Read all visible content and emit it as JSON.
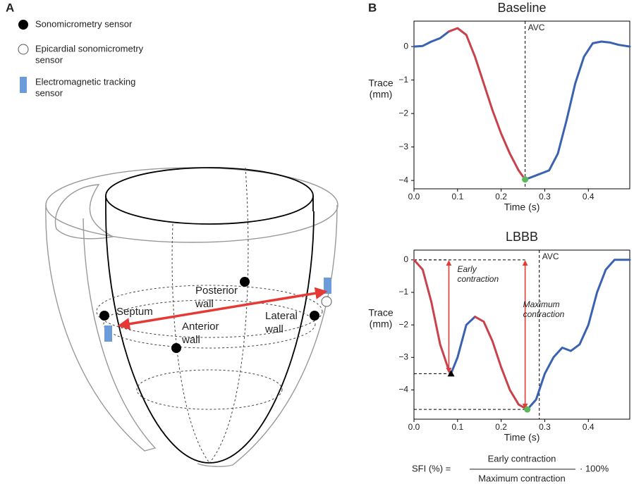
{
  "panel_labels": [
    "A",
    "B"
  ],
  "legend": [
    {
      "lines": [
        "Sonomicrometry sensor"
      ]
    },
    {
      "lines": [
        "Epicardial sonomicrometry",
        "sensor"
      ]
    },
    {
      "lines": [
        "Electromagnetic tracking",
        "sensor"
      ]
    }
  ],
  "diagram_labels": [
    {
      "lines": [
        "Septum"
      ]
    },
    {
      "lines": [
        "Posterior",
        "wall"
      ]
    },
    {
      "lines": [
        "Anterior",
        "wall"
      ]
    },
    {
      "lines": [
        "Lateral",
        "wall"
      ]
    }
  ],
  "chart_data": [
    {
      "type": "line",
      "title": "Baseline",
      "xlabel": "Time (s)",
      "ylabel": [
        "Trace",
        "(mm)"
      ],
      "x": [
        0,
        0.02,
        0.04,
        0.06,
        0.08,
        0.1,
        0.12,
        0.14,
        0.16,
        0.18,
        0.2,
        0.22,
        0.24,
        0.255,
        0.27,
        0.29,
        0.31,
        0.33,
        0.35,
        0.37,
        0.39,
        0.41,
        0.43,
        0.45,
        0.47,
        0.495
      ],
      "series": [
        {
          "color": "#3a62b0",
          "values": [
            0,
            0.02,
            0.15,
            0.25,
            0.45,
            null,
            null,
            null,
            null,
            null,
            null,
            null,
            null,
            -3.97,
            -3.9,
            -3.8,
            -3.7,
            -3.2,
            -2.2,
            -1.1,
            -0.3,
            0.1,
            0.15,
            0.12,
            0.05,
            0
          ]
        },
        {
          "color": "#c8414b",
          "values": [
            null,
            null,
            null,
            null,
            0.45,
            0.55,
            0.35,
            -0.3,
            -1.1,
            -1.9,
            -2.6,
            -3.2,
            -3.7,
            -3.97,
            null,
            null,
            null,
            null,
            null,
            null,
            null,
            null,
            null,
            null,
            null,
            null
          ]
        }
      ],
      "markers": [
        {
          "x": 0.255,
          "y": -3.97,
          "color": "#5cb85c",
          "shape": "circle"
        }
      ],
      "vline": {
        "x": 0.255,
        "label": "AVC"
      },
      "xlim": [
        0,
        0.495
      ],
      "ylim": [
        -4.25,
        0.76
      ],
      "xticks": [
        {
          "value": 0,
          "label": "0.0"
        },
        {
          "value": 0.1,
          "label": "0.1"
        },
        {
          "value": 0.2,
          "label": "0.2"
        },
        {
          "value": 0.3,
          "label": "0.3"
        },
        {
          "value": 0.4,
          "label": "0.4"
        }
      ],
      "yticks": [
        {
          "value": 0,
          "label": "0"
        },
        {
          "value": -1,
          "label": "−1"
        },
        {
          "value": -2,
          "label": "−2"
        },
        {
          "value": -3,
          "label": "−3"
        },
        {
          "value": -4,
          "label": "−4"
        }
      ]
    },
    {
      "type": "line",
      "title": "LBBB",
      "xlabel": "Time (s)",
      "ylabel": [
        "Trace",
        "(mm)"
      ],
      "x": [
        0,
        0.02,
        0.04,
        0.06,
        0.08,
        0.085,
        0.1,
        0.12,
        0.14,
        0.16,
        0.18,
        0.2,
        0.22,
        0.24,
        0.26,
        0.28,
        0.3,
        0.32,
        0.34,
        0.36,
        0.38,
        0.4,
        0.42,
        0.44,
        0.46,
        0.48,
        0.495
      ],
      "series": [
        {
          "color": "#3a62b0",
          "values": [
            null,
            null,
            null,
            null,
            null,
            -3.5,
            -3.0,
            -2.0,
            -1.75,
            null,
            null,
            null,
            null,
            null,
            -4.6,
            -4.3,
            -3.5,
            -3.0,
            -2.7,
            -2.8,
            -2.6,
            -2.0,
            -1.0,
            -0.3,
            0,
            0,
            0
          ]
        },
        {
          "color": "#c8414b",
          "values": [
            0,
            -0.3,
            -1.3,
            -2.6,
            -3.4,
            -3.5,
            null,
            null,
            -1.75,
            -1.9,
            -2.5,
            -3.3,
            -4.0,
            -4.45,
            -4.6,
            null,
            null,
            null,
            null,
            null,
            null,
            null,
            null,
            null,
            null,
            null,
            null
          ]
        }
      ],
      "markers": [
        {
          "x": 0.085,
          "y": -3.5,
          "color": "#000000",
          "shape": "triangle"
        },
        {
          "x": 0.26,
          "y": -4.6,
          "color": "#5cb85c",
          "shape": "circle"
        }
      ],
      "vline": {
        "x": 0.2875,
        "label": "AVC"
      },
      "arrows": [
        {
          "x": 0.08,
          "from": 0,
          "to": -3.5,
          "lines": [
            "Early",
            "contraction"
          ]
        },
        {
          "x": 0.255,
          "from": 0,
          "to": -4.6,
          "lines": [
            "Maximum",
            "contraction"
          ]
        }
      ],
      "xlim": [
        0,
        0.495
      ],
      "ylim": [
        -4.9,
        0.3
      ],
      "xticks": [
        {
          "value": 0,
          "label": "0.0"
        },
        {
          "value": 0.1,
          "label": "0.1"
        },
        {
          "value": 0.2,
          "label": "0.2"
        },
        {
          "value": 0.3,
          "label": "0.3"
        },
        {
          "value": 0.4,
          "label": "0.4"
        }
      ],
      "yticks": [
        {
          "value": 0,
          "label": "0"
        },
        {
          "value": -1,
          "label": "−1"
        },
        {
          "value": -2,
          "label": "−2"
        },
        {
          "value": -3,
          "label": "−3"
        },
        {
          "value": -4,
          "label": "−4"
        }
      ]
    }
  ],
  "formula": {
    "lhs": "SFI (%) =",
    "numerator": "Early contraction",
    "denominator": "Maximum contraction",
    "factor": "· 100%"
  }
}
